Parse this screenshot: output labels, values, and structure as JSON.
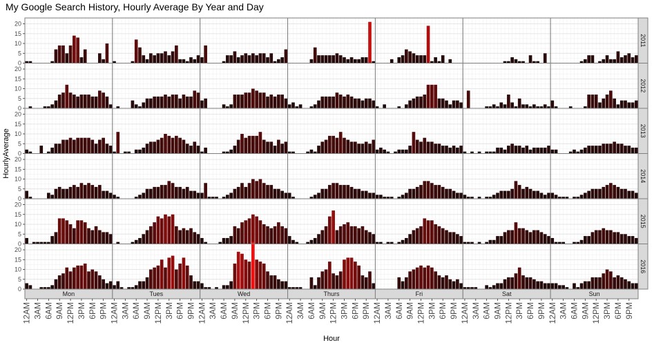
{
  "chart_data": {
    "type": "bar",
    "title": "My Google Search History, Hourly Average By Year and Day",
    "xlabel": "Hour",
    "ylabel": "HourlyAverage",
    "ylim": [
      0,
      23
    ],
    "yticks": [
      0,
      5,
      10,
      15,
      20
    ],
    "hours": [
      "12AM",
      "1AM",
      "2AM",
      "3AM",
      "4AM",
      "5AM",
      "6AM",
      "7AM",
      "8AM",
      "9AM",
      "10AM",
      "11AM",
      "12PM",
      "1PM",
      "2PM",
      "3PM",
      "4PM",
      "5PM",
      "6PM",
      "7PM",
      "8PM",
      "9PM",
      "10PM",
      "11PM"
    ],
    "hour_tick_labels": [
      "12AM",
      "3AM",
      "6AM",
      "9AM",
      "12PM",
      "3PM",
      "6PM",
      "9PM"
    ],
    "days": [
      "Mon",
      "Tues",
      "Wed",
      "Thurs",
      "Fri",
      "Sat",
      "Sun"
    ],
    "years": [
      "2011",
      "2012",
      "2013",
      "2014",
      "2015",
      "2016"
    ],
    "grid": true,
    "legend": "none",
    "colors": {
      "low": "#1a0a0a",
      "high": "#ee1111",
      "panel_border": "#7f7f7f",
      "strip_fill": "#d9d9d9",
      "grid": "#ebebeb"
    },
    "values": {
      "2011": {
        "Mon": [
          1,
          1,
          0,
          0,
          0,
          0,
          0,
          1,
          7,
          9,
          9,
          5,
          9,
          14,
          13,
          3,
          7,
          0,
          0,
          0,
          5,
          2,
          10,
          0
        ],
        "Tues": [
          1,
          0,
          0,
          0,
          0,
          1,
          12,
          8,
          4,
          2,
          5,
          4,
          5,
          5,
          6,
          4,
          6,
          9,
          2,
          2,
          1,
          3,
          2,
          4
        ],
        "Wed": [
          3,
          9,
          0,
          0,
          0,
          0,
          1,
          4,
          4,
          6,
          3,
          4,
          5,
          4,
          5,
          4,
          5,
          5,
          3,
          5,
          1,
          2,
          3,
          7
        ],
        "Thurs": [
          0,
          0,
          0,
          0,
          0,
          0,
          2,
          8,
          4,
          4,
          4,
          4,
          4,
          5,
          4,
          3,
          2,
          3,
          2,
          2,
          3,
          3,
          21,
          1
        ],
        "Fri": [
          0,
          0,
          0,
          0,
          2,
          0,
          3,
          4,
          7,
          6,
          5,
          4,
          4,
          4,
          19,
          1,
          3,
          1,
          4,
          0,
          2,
          0,
          0,
          0
        ],
        "Sat": [
          0,
          0,
          0,
          0,
          0,
          0,
          0,
          0,
          0,
          0,
          0,
          1,
          1,
          3,
          2,
          1,
          1,
          0,
          4,
          1,
          1,
          0,
          5,
          0
        ],
        "Sun": [
          0,
          0,
          0,
          0,
          0,
          0,
          0,
          0,
          1,
          2,
          4,
          4,
          0,
          1,
          2,
          4,
          2,
          2,
          6,
          3,
          4,
          5,
          3,
          4
        ]
      },
      "2012": {
        "Mon": [
          0,
          1,
          0,
          0,
          0,
          1,
          1,
          2,
          4,
          7,
          8,
          12,
          8,
          7,
          6,
          7,
          7,
          7,
          6,
          6,
          9,
          8,
          6,
          2
        ],
        "Tues": [
          0,
          1,
          0,
          0,
          0,
          4,
          2,
          1,
          3,
          5,
          5,
          6,
          6,
          6,
          7,
          6,
          7,
          7,
          5,
          7,
          6,
          6,
          9,
          8
        ],
        "Wed": [
          4,
          5,
          0,
          0,
          0,
          0,
          2,
          1,
          2,
          7,
          7,
          7,
          8,
          8,
          10,
          9,
          8,
          8,
          6,
          7,
          6,
          7,
          7,
          5
        ],
        "Thurs": [
          2,
          3,
          1,
          2,
          0,
          0,
          1,
          2,
          4,
          6,
          6,
          6,
          6,
          8,
          7,
          6,
          7,
          6,
          5,
          5,
          4,
          5,
          5,
          4
        ],
        "Fri": [
          1,
          0,
          2,
          0,
          0,
          0,
          1,
          0,
          2,
          4,
          5,
          6,
          6,
          7,
          12,
          12,
          12,
          5,
          5,
          4,
          2,
          4,
          4,
          3
        ],
        "Sat": [
          0,
          9,
          0,
          0,
          0,
          0,
          1,
          1,
          2,
          1,
          3,
          2,
          7,
          3,
          1,
          5,
          2,
          2,
          1,
          2,
          1,
          1,
          2,
          1
        ],
        "Sun": [
          4,
          1,
          0,
          0,
          0,
          1,
          0,
          0,
          0,
          1,
          7,
          7,
          7,
          3,
          5,
          7,
          9,
          5,
          2,
          4,
          4,
          3,
          3,
          4
        ]
      },
      "2013": {
        "Mon": [
          2,
          1,
          0,
          0,
          4,
          0,
          1,
          3,
          5,
          5,
          7,
          7,
          8,
          7,
          8,
          8,
          8,
          8,
          7,
          5,
          7,
          8,
          5,
          4
        ],
        "Tues": [
          1,
          11,
          0,
          1,
          1,
          0,
          2,
          2,
          3,
          5,
          6,
          6,
          7,
          8,
          10,
          9,
          8,
          9,
          8,
          7,
          5,
          4,
          6,
          4
        ],
        "Wed": [
          1,
          3,
          0,
          0,
          0,
          0,
          1,
          1,
          2,
          4,
          7,
          10,
          8,
          9,
          9,
          9,
          11,
          7,
          6,
          6,
          4,
          7,
          5,
          6
        ],
        "Thurs": [
          1,
          1,
          0,
          0,
          0,
          1,
          2,
          1,
          4,
          6,
          7,
          9,
          9,
          8,
          11,
          8,
          7,
          6,
          6,
          5,
          5,
          6,
          5,
          7
        ],
        "Fri": [
          2,
          3,
          2,
          1,
          0,
          1,
          2,
          2,
          2,
          4,
          11,
          7,
          6,
          8,
          6,
          6,
          5,
          5,
          4,
          4,
          3,
          4,
          3,
          4
        ],
        "Sat": [
          1,
          0,
          1,
          0,
          1,
          0,
          1,
          1,
          1,
          3,
          3,
          2,
          4,
          5,
          4,
          4,
          3,
          4,
          2,
          3,
          3,
          3,
          3,
          4
        ],
        "Sun": [
          2,
          2,
          0,
          0,
          0,
          1,
          2,
          1,
          2,
          3,
          4,
          4,
          4,
          4,
          5,
          5,
          5,
          6,
          5,
          5,
          4,
          4,
          3,
          3
        ]
      },
      "2014": {
        "Mon": [
          4,
          1,
          0,
          0,
          0,
          0,
          3,
          2,
          5,
          6,
          5,
          5,
          6,
          7,
          6,
          8,
          7,
          8,
          7,
          6,
          7,
          4,
          4,
          3
        ],
        "Tues": [
          2,
          1,
          0,
          0,
          0,
          0,
          1,
          2,
          3,
          5,
          5,
          6,
          6,
          7,
          7,
          9,
          8,
          6,
          6,
          5,
          6,
          4,
          4,
          3
        ],
        "Wed": [
          3,
          8,
          1,
          1,
          1,
          0,
          1,
          2,
          3,
          5,
          6,
          8,
          6,
          8,
          10,
          9,
          10,
          8,
          7,
          7,
          5,
          5,
          4,
          3
        ],
        "Thurs": [
          3,
          1,
          0,
          0,
          0,
          0,
          1,
          2,
          3,
          5,
          5,
          7,
          8,
          8,
          7,
          7,
          7,
          6,
          5,
          5,
          4,
          4,
          3,
          3
        ],
        "Fri": [
          2,
          2,
          1,
          1,
          1,
          0,
          1,
          2,
          3,
          5,
          5,
          6,
          7,
          9,
          9,
          8,
          7,
          7,
          6,
          5,
          5,
          4,
          3,
          3
        ],
        "Sat": [
          2,
          1,
          1,
          0,
          1,
          0,
          1,
          1,
          2,
          3,
          4,
          4,
          4,
          5,
          9,
          7,
          5,
          6,
          5,
          4,
          4,
          3,
          2,
          3
        ],
        "Sun": [
          3,
          2,
          1,
          1,
          1,
          0,
          1,
          1,
          2,
          3,
          4,
          5,
          5,
          5,
          6,
          7,
          8,
          7,
          6,
          5,
          5,
          4,
          4,
          3
        ]
      },
      "2015": {
        "Mon": [
          3,
          0,
          1,
          1,
          1,
          1,
          1,
          4,
          6,
          13,
          13,
          12,
          10,
          8,
          12,
          12,
          11,
          8,
          7,
          9,
          7,
          6,
          6,
          5
        ],
        "Tues": [
          0,
          1,
          0,
          0,
          0,
          1,
          2,
          3,
          5,
          7,
          9,
          11,
          14,
          13,
          15,
          14,
          15,
          9,
          7,
          8,
          7,
          8,
          6,
          5
        ],
        "Wed": [
          3,
          1,
          0,
          0,
          0,
          1,
          3,
          3,
          4,
          9,
          8,
          11,
          12,
          13,
          15,
          14,
          12,
          10,
          9,
          8,
          9,
          11,
          9,
          8
        ],
        "Thurs": [
          4,
          2,
          1,
          0,
          0,
          1,
          2,
          3,
          5,
          7,
          9,
          14,
          17,
          7,
          9,
          10,
          11,
          9,
          9,
          8,
          9,
          7,
          6,
          5
        ],
        "Fri": [
          1,
          1,
          0,
          1,
          1,
          0,
          1,
          2,
          3,
          5,
          7,
          8,
          9,
          13,
          12,
          12,
          10,
          9,
          8,
          7,
          6,
          6,
          5,
          4
        ],
        "Sat": [
          1,
          1,
          1,
          0,
          1,
          0,
          1,
          2,
          2,
          4,
          4,
          6,
          7,
          7,
          11,
          8,
          8,
          7,
          6,
          7,
          7,
          6,
          5,
          4
        ],
        "Sun": [
          3,
          1,
          1,
          1,
          0,
          0,
          1,
          1,
          2,
          4,
          4,
          6,
          7,
          7,
          8,
          7,
          7,
          6,
          6,
          5,
          5,
          4,
          4,
          3
        ]
      },
      "2016": {
        "Mon": [
          3,
          2,
          0,
          0,
          1,
          1,
          1,
          2,
          5,
          7,
          8,
          11,
          9,
          11,
          12,
          12,
          13,
          9,
          10,
          9,
          7,
          5,
          3,
          4
        ],
        "Tues": [
          2,
          4,
          1,
          0,
          1,
          1,
          2,
          4,
          4,
          6,
          10,
          11,
          12,
          15,
          11,
          16,
          17,
          10,
          13,
          16,
          12,
          7,
          4,
          4
        ],
        "Wed": [
          3,
          1,
          1,
          0,
          1,
          0,
          2,
          2,
          4,
          13,
          19,
          18,
          15,
          14,
          24,
          15,
          14,
          13,
          9,
          7,
          7,
          5,
          4,
          4
        ],
        "Thurs": [
          1,
          1,
          1,
          1,
          0,
          0,
          6,
          2,
          6,
          9,
          10,
          14,
          8,
          7,
          9,
          15,
          16,
          16,
          14,
          12,
          7,
          6,
          9,
          3
        ],
        "Fri": [
          0,
          0,
          0,
          0,
          0,
          0,
          6,
          4,
          6,
          9,
          10,
          11,
          12,
          11,
          12,
          11,
          9,
          7,
          6,
          7,
          5,
          4,
          5,
          3
        ],
        "Sat": [
          1,
          1,
          1,
          1,
          0,
          0,
          2,
          1,
          2,
          3,
          3,
          5,
          6,
          6,
          8,
          11,
          7,
          6,
          6,
          5,
          4,
          4,
          3,
          3
        ],
        "Sun": [
          3,
          3,
          2,
          2,
          1,
          0,
          3,
          1,
          3,
          4,
          4,
          6,
          6,
          6,
          8,
          10,
          9,
          6,
          7,
          6,
          5,
          4,
          3,
          3
        ]
      }
    }
  }
}
